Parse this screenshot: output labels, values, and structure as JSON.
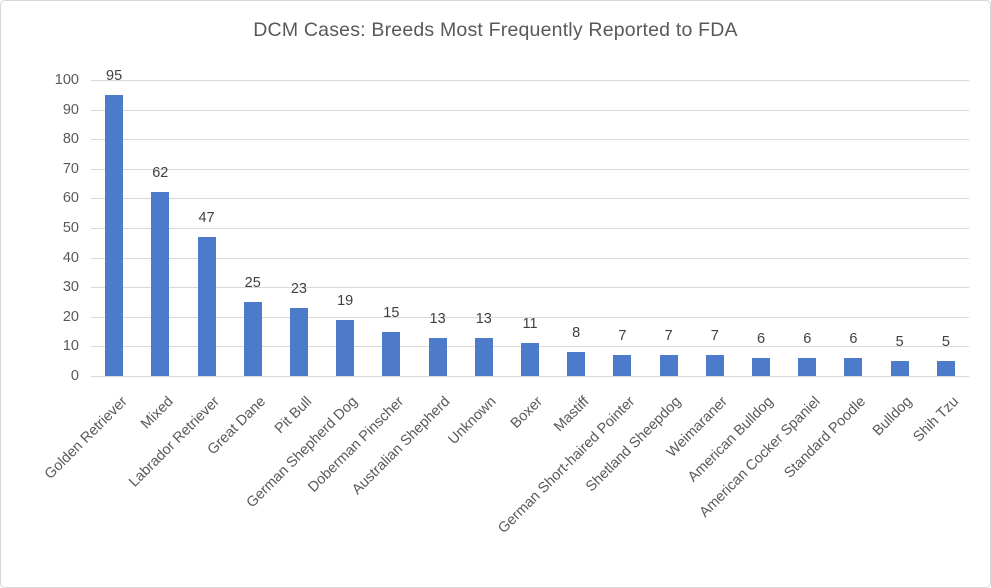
{
  "chart_data": {
    "type": "bar",
    "title": "DCM Cases: Breeds Most Frequently Reported to FDA",
    "categories": [
      "Golden Retriever",
      "Mixed",
      "Labrador Retriever",
      "Great Dane",
      "Pit Bull",
      "German Shepherd Dog",
      "Doberman Pinscher",
      "Australian Shepherd",
      "Unknown",
      "Boxer",
      "Mastiff",
      "German Short-haired Pointer",
      "Shetland Sheepdog",
      "Weimaraner",
      "American Bulldog",
      "American Cocker Spaniel",
      "Standard Poodle",
      "Bulldog",
      "Shih Tzu"
    ],
    "values": [
      95,
      62,
      47,
      25,
      23,
      19,
      15,
      13,
      13,
      11,
      8,
      7,
      7,
      7,
      6,
      6,
      6,
      5,
      5
    ],
    "yticks": [
      0,
      10,
      20,
      30,
      40,
      50,
      60,
      70,
      80,
      90,
      100
    ],
    "ylim": [
      0,
      100
    ],
    "xlabel": "",
    "ylabel": "",
    "grid": "horizontal",
    "legend": "none",
    "data_labels": true,
    "colors": {
      "bar": "#4d7ac9",
      "gridline": "#d9d9d9",
      "axis_text": "#595959",
      "data_label_text": "#404040",
      "frame_border": "#d7d7d7"
    }
  }
}
